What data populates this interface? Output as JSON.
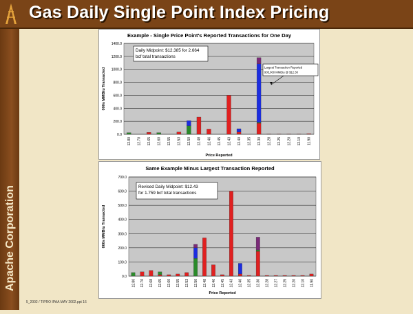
{
  "slide": {
    "title": "Gas Daily Single Point Index Pricing",
    "company": "Apache Corporation",
    "footer": "5_2002 / TIPRO IPAA MAY 2002.ppt 16"
  },
  "colors": {
    "red": "#e02020",
    "blue": "#1c2de0",
    "green": "#2a8a2a",
    "purple": "#7a2a78",
    "plot_bg": "#c8c8c8"
  },
  "chart_data": [
    {
      "type": "bar",
      "stacked": true,
      "title": "Example - Single Price Point's Reported Transactions for One Day",
      "xlabel": "Price Reported",
      "ylabel": "000s MMBtu Transacted",
      "ylim": [
        0,
        1400
      ],
      "yticks": [
        "0.0",
        "200.0",
        "400.0",
        "600.0",
        "800.0",
        "1000.0",
        "1200.0",
        "1400.0"
      ],
      "grid": true,
      "categories": [
        "12.80",
        "12.70",
        "12.65",
        "12.60",
        "12.55",
        "12.53",
        "12.50",
        "12.48",
        "12.46",
        "12.45",
        "12.43",
        "12.40",
        "12.35",
        "12.30",
        "12.28",
        "12.25",
        "12.20",
        "12.10",
        "11.90"
      ],
      "series": [
        {
          "color": "red",
          "values": [
            0,
            0,
            30,
            0,
            0,
            35,
            0,
            265,
            80,
            0,
            600,
            35,
            0,
            170,
            5,
            5,
            5,
            5,
            10
          ]
        },
        {
          "color": "green",
          "values": [
            25,
            0,
            0,
            25,
            0,
            0,
            130,
            0,
            0,
            0,
            0,
            0,
            0,
            15,
            0,
            0,
            0,
            0,
            0
          ]
        },
        {
          "color": "blue",
          "values": [
            0,
            0,
            0,
            0,
            0,
            0,
            80,
            0,
            0,
            0,
            0,
            50,
            0,
            900,
            0,
            0,
            0,
            0,
            0
          ]
        },
        {
          "color": "purple",
          "values": [
            0,
            0,
            0,
            0,
            0,
            0,
            0,
            0,
            0,
            0,
            0,
            0,
            0,
            95,
            0,
            0,
            0,
            0,
            0
          ]
        }
      ],
      "annotations": {
        "box": [
          "Daily Midpoint:  $12.385 for 2.664",
          "bcf total transactions"
        ],
        "callout": [
          "Largest Transaction Reported",
          "905,000 MMBtu @ $12.30"
        ]
      }
    },
    {
      "type": "bar",
      "stacked": true,
      "title": "Same Example Minus Largest Transaction Reported",
      "xlabel": "Price Reported",
      "ylabel": "000s MMBtu Transacted",
      "ylim": [
        0,
        700
      ],
      "yticks": [
        "0.0",
        "100.0",
        "200.0",
        "300.0",
        "400.0",
        "500.0",
        "600.0",
        "700.0"
      ],
      "grid": true,
      "categories": [
        "12.80",
        "12.70",
        "12.68",
        "12.65",
        "12.60",
        "12.55",
        "12.53",
        "12.50",
        "12.48",
        "12.46",
        "12.45",
        "12.43",
        "12.40",
        "12.35",
        "12.30",
        "12.28",
        "12.27",
        "12.25",
        "12.20",
        "12.10",
        "11.90"
      ],
      "series": [
        {
          "color": "red",
          "values": [
            0,
            30,
            40,
            10,
            10,
            15,
            25,
            0,
            270,
            80,
            10,
            600,
            15,
            5,
            175,
            5,
            5,
            5,
            5,
            5,
            15
          ]
        },
        {
          "color": "green",
          "values": [
            25,
            0,
            0,
            20,
            0,
            0,
            0,
            125,
            0,
            0,
            0,
            0,
            0,
            0,
            10,
            0,
            0,
            0,
            0,
            0,
            0
          ]
        },
        {
          "color": "blue",
          "values": [
            0,
            0,
            0,
            0,
            0,
            0,
            0,
            75,
            0,
            0,
            0,
            0,
            75,
            0,
            0,
            0,
            0,
            0,
            0,
            0,
            0
          ]
        },
        {
          "color": "purple",
          "values": [
            0,
            0,
            0,
            0,
            0,
            0,
            0,
            25,
            0,
            0,
            0,
            0,
            0,
            0,
            90,
            0,
            0,
            0,
            0,
            0,
            0
          ]
        }
      ],
      "annotations": {
        "box": [
          "Revised Daily Midpoint:  $12.43",
          "for 1.759 bcf total transactions"
        ]
      }
    }
  ]
}
